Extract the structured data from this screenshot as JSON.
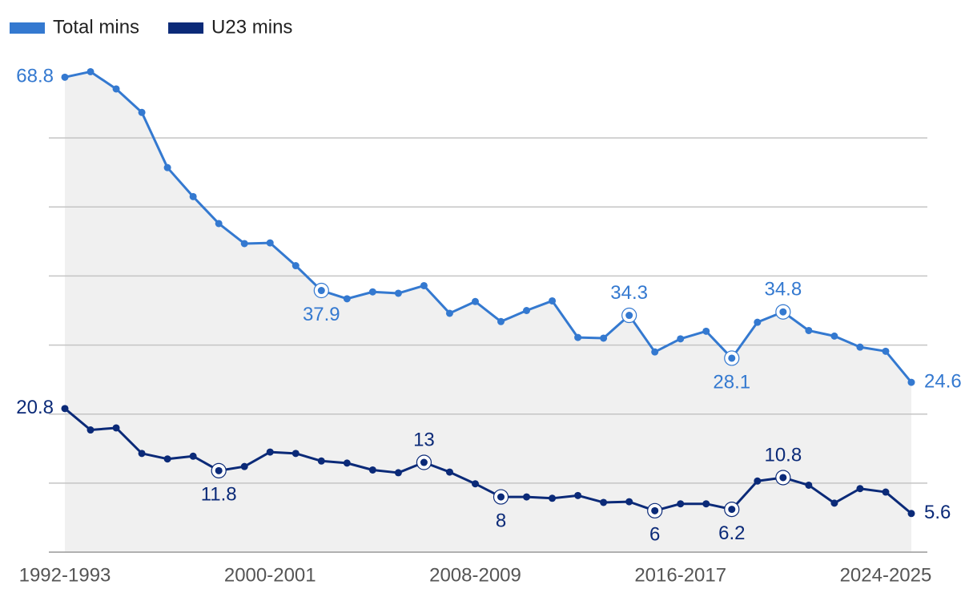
{
  "chart_data": {
    "type": "line",
    "categories": [
      "1992-1993",
      null,
      null,
      null,
      null,
      null,
      null,
      null,
      "2000-2001",
      null,
      null,
      null,
      null,
      null,
      null,
      null,
      "2008-2009",
      null,
      null,
      null,
      null,
      null,
      null,
      null,
      "2016-2017",
      null,
      null,
      null,
      null,
      null,
      null,
      null,
      "2024-2025",
      null
    ],
    "series": [
      {
        "name": "Total mins",
        "color": "#3479d0",
        "values": [
          68.8,
          69.6,
          67.1,
          63.7,
          55.7,
          51.5,
          47.6,
          44.7,
          44.8,
          41.5,
          37.9,
          36.7,
          37.7,
          37.5,
          38.6,
          34.6,
          36.3,
          33.4,
          35.0,
          36.4,
          31.1,
          31.0,
          34.3,
          29.0,
          30.9,
          32.0,
          28.1,
          33.3,
          34.8,
          32.1,
          31.3,
          29.7,
          29.1,
          24.6
        ],
        "value_labels": [
          "68.8",
          null,
          null,
          null,
          null,
          null,
          null,
          null,
          null,
          null,
          "37.9",
          null,
          null,
          null,
          null,
          null,
          null,
          null,
          null,
          null,
          null,
          null,
          "34.3",
          null,
          null,
          null,
          "28.1",
          null,
          "34.8",
          null,
          null,
          null,
          null,
          "24.6"
        ]
      },
      {
        "name": "U23 mins",
        "color": "#0b2a78",
        "values": [
          20.8,
          17.7,
          18.0,
          14.3,
          13.5,
          13.9,
          11.8,
          12.4,
          14.5,
          14.3,
          13.2,
          12.9,
          11.9,
          11.5,
          13,
          11.6,
          9.9,
          8,
          8.0,
          7.8,
          8.2,
          7.2,
          7.3,
          6,
          7.0,
          7.0,
          6.2,
          10.3,
          10.8,
          9.7,
          7.1,
          9.2,
          8.7,
          5.6
        ],
        "value_labels": [
          "20.8",
          null,
          null,
          null,
          null,
          null,
          "11.8",
          null,
          null,
          null,
          null,
          null,
          null,
          null,
          "13",
          null,
          null,
          "8",
          null,
          null,
          null,
          null,
          null,
          "6",
          null,
          null,
          "6.2",
          null,
          "10.8",
          null,
          null,
          null,
          null,
          "5.6"
        ]
      }
    ],
    "ylim": [
      0,
      70
    ],
    "yticks": [
      0,
      10,
      20,
      30,
      40,
      50,
      60
    ],
    "grid": true,
    "area": true
  }
}
